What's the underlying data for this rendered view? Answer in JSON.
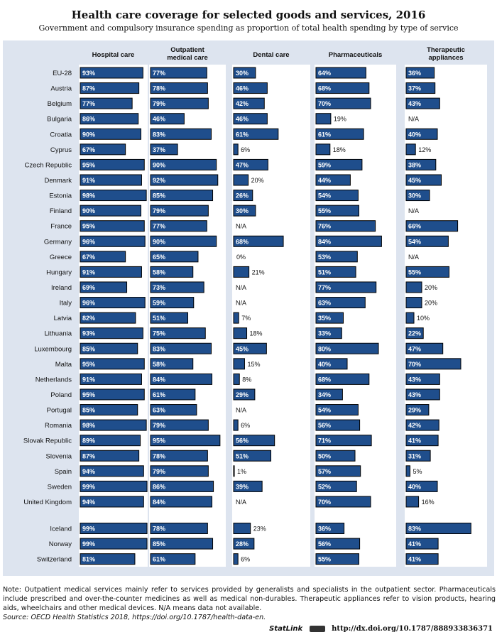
{
  "title": "Health care coverage for selected goods and services, 2016",
  "subtitle": "Government and compulsory insurance spending as proportion of total health spending by type of service",
  "note": "Note: Outpatient medical services mainly refer to services provided by generalists and specialists in the outpatient sector. Pharmaceuticals include prescribed and over-the-counter medicines as well as medical non-durables. Therapeutic appliances refer to vision products, hearing aids, wheelchairs and other medical devices. N/A means data not available.",
  "source": "Source: OECD Health Statistics 2018, https://doi.org/10.1787/health-data-en.",
  "statlink": {
    "brand": "StatLink",
    "url": "http://dx.doi.org/10.1787/888933836371"
  },
  "chart_data": {
    "type": "bar",
    "orientation": "horizontal",
    "unit": "%",
    "xlim": [
      0,
      100
    ],
    "colors": {
      "bar": "#1f4e8c",
      "panel": "#dde4ef",
      "bar_border": "#000000",
      "label_on_bar": "#ffffff"
    },
    "na_label": "N/A",
    "categories": [
      "EU-28",
      "Austria",
      "Belgium",
      "Bulgaria",
      "Croatia",
      "Cyprus",
      "Czech Republic",
      "Denmark",
      "Estonia",
      "Finland",
      "France",
      "Germany",
      "Greece",
      "Hungary",
      "Ireland",
      "Italy",
      "Latvia",
      "Lithuania",
      "Luxembourg",
      "Malta",
      "Netherlands",
      "Poland",
      "Portugal",
      "Romania",
      "Slovak Republic",
      "Slovenia",
      "Spain",
      "Sweden",
      "United Kingdom",
      "Iceland",
      "Norway",
      "Switzerland"
    ],
    "series": [
      {
        "name": "Hospital care",
        "values": [
          93,
          87,
          77,
          86,
          90,
          67,
          95,
          91,
          98,
          90,
          95,
          96,
          67,
          91,
          69,
          96,
          82,
          93,
          85,
          95,
          91,
          95,
          85,
          98,
          89,
          87,
          94,
          99,
          94,
          99,
          99,
          81
        ]
      },
      {
        "name": "Outpatient medical care",
        "values": [
          77,
          78,
          79,
          46,
          83,
          37,
          90,
          92,
          85,
          79,
          77,
          90,
          65,
          58,
          73,
          59,
          51,
          75,
          83,
          58,
          84,
          61,
          63,
          79,
          95,
          78,
          79,
          86,
          84,
          78,
          85,
          61
        ]
      },
      {
        "name": "Dental care",
        "values": [
          30,
          46,
          42,
          46,
          61,
          6,
          47,
          20,
          26,
          30,
          null,
          68,
          0,
          21,
          null,
          null,
          7,
          18,
          45,
          15,
          8,
          29,
          null,
          6,
          56,
          51,
          1,
          39,
          null,
          23,
          28,
          6
        ]
      },
      {
        "name": "Pharmaceuticals",
        "values": [
          64,
          68,
          70,
          19,
          61,
          18,
          59,
          44,
          54,
          55,
          76,
          84,
          53,
          51,
          77,
          63,
          35,
          33,
          80,
          40,
          68,
          34,
          54,
          56,
          71,
          50,
          57,
          52,
          70,
          36,
          56,
          55
        ]
      },
      {
        "name": "Therapeutic appliances",
        "values": [
          36,
          37,
          43,
          null,
          40,
          12,
          38,
          45,
          30,
          null,
          66,
          54,
          null,
          55,
          20,
          20,
          10,
          22,
          47,
          70,
          43,
          43,
          29,
          42,
          41,
          31,
          5,
          40,
          16,
          83,
          41,
          41
        ]
      }
    ]
  }
}
